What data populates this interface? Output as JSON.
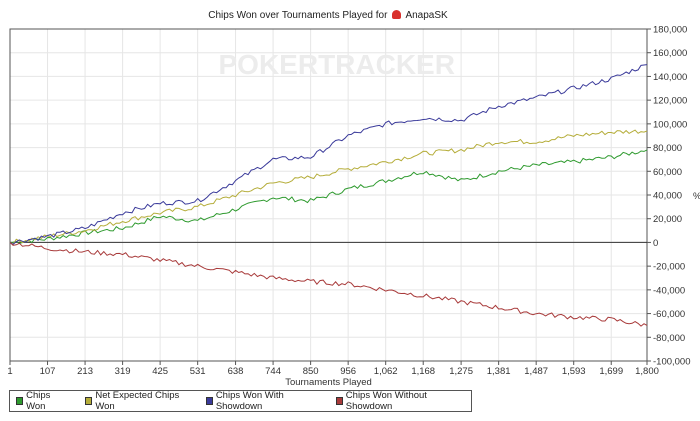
{
  "chart_data": {
    "type": "line",
    "title": "Chips Won over Tournaments Played for",
    "player": "AnapaSK",
    "watermark": "POKERTRACKER",
    "xlabel": "Tournaments Played",
    "ylabel": "%",
    "xlim": [
      1,
      1800
    ],
    "ylim": [
      -100000,
      180000
    ],
    "x_ticks": [
      1,
      107,
      213,
      319,
      425,
      531,
      638,
      744,
      850,
      956,
      1062,
      1168,
      1275,
      1381,
      1487,
      1593,
      1699,
      1800
    ],
    "x_tick_labels": [
      "1",
      "107",
      "213",
      "319",
      "425",
      "531",
      "638",
      "744",
      "850",
      "956",
      "1,062",
      "1,168",
      "1,275",
      "1,381",
      "1,487",
      "1,593",
      "1,699",
      "1,800"
    ],
    "y_ticks": [
      180000,
      160000,
      140000,
      120000,
      100000,
      80000,
      60000,
      40000,
      20000,
      0,
      -20000,
      -40000,
      -60000,
      -80000,
      -100000
    ],
    "y_tick_labels": [
      "180,000",
      "160,000",
      "140,000",
      "120,000",
      "100,000",
      "80,000",
      "60,000",
      "40,000",
      "20,000",
      "0",
      "-20,000",
      "-40,000",
      "-60,000",
      "-80,000",
      "-100,000"
    ],
    "grid": true,
    "legend_position": "bottom-left",
    "x": [
      1,
      107,
      213,
      319,
      425,
      531,
      638,
      744,
      850,
      956,
      1062,
      1168,
      1275,
      1381,
      1487,
      1593,
      1699,
      1800
    ],
    "series": [
      {
        "name": "Chips Won",
        "color": "#2e9a2e",
        "values": [
          0,
          3000,
          8000,
          12000,
          22000,
          18000,
          28000,
          38000,
          35000,
          45000,
          52000,
          60000,
          52000,
          60000,
          65000,
          68000,
          72000,
          78000
        ]
      },
      {
        "name": "Net Expected Chips Won",
        "color": "#b5ad3a",
        "values": [
          0,
          5000,
          10000,
          18000,
          25000,
          30000,
          40000,
          50000,
          55000,
          62000,
          68000,
          75000,
          78000,
          85000,
          85000,
          90000,
          93000,
          94000
        ]
      },
      {
        "name": "Chips Won With Showdown",
        "color": "#3a3a9a",
        "values": [
          0,
          5000,
          12000,
          25000,
          33000,
          35000,
          52000,
          70000,
          72000,
          90000,
          100000,
          105000,
          103000,
          115000,
          122000,
          130000,
          138000,
          150000
        ]
      },
      {
        "name": "Chips Won Without Showdown",
        "color": "#a83a3a",
        "values": [
          0,
          -5000,
          -8000,
          -10000,
          -15000,
          -20000,
          -25000,
          -30000,
          -33000,
          -35000,
          -40000,
          -45000,
          -50000,
          -55000,
          -60000,
          -63000,
          -65000,
          -70000
        ]
      }
    ]
  }
}
